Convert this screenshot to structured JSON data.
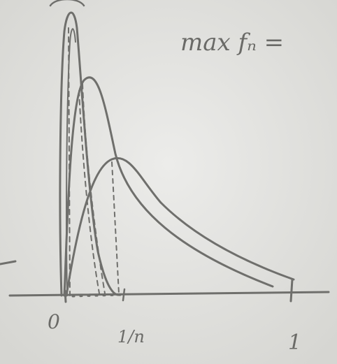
{
  "board": {
    "heading": "max fₙ =",
    "tick_labels": {
      "origin": "0",
      "one_over_n": "1/n",
      "one": "1"
    }
  },
  "colors": {
    "board_background": "#e4e4e0",
    "chalk": "#6f6f6c"
  }
}
